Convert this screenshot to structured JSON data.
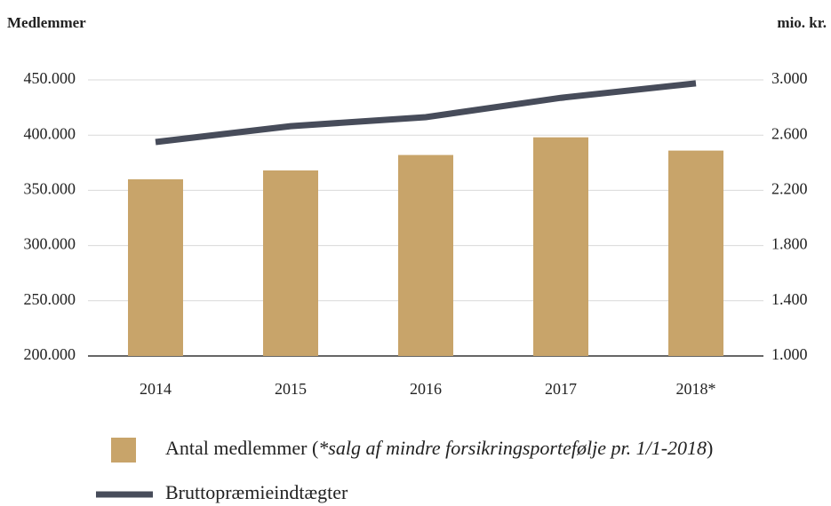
{
  "chart_data": {
    "type": "bar_line",
    "y_label": "Medlemmer",
    "y2_label": "mio. kr.",
    "categories": [
      "2014",
      "2015",
      "2016",
      "2017",
      "2018*"
    ],
    "series": [
      {
        "name": "Antal medlemmer (*salg af mindre forsikringsportefølje pr. 1/1-2018)",
        "type": "bar",
        "color": "#c8a46a",
        "values": [
          360000,
          368000,
          382000,
          398000,
          386000
        ]
      },
      {
        "name": "Bruttopræmieindtægter",
        "type": "line",
        "axis": "y2",
        "color": "#474c5a",
        "values": [
          2550,
          2665,
          2730,
          2870,
          2975
        ]
      }
    ],
    "ylim": [
      200000,
      450000
    ],
    "yticks": [
      {
        "value": 200000,
        "label": "200.000"
      },
      {
        "value": 250000,
        "label": "250.000"
      },
      {
        "value": 300000,
        "label": "300.000"
      },
      {
        "value": 350000,
        "label": "350.000"
      },
      {
        "value": 400000,
        "label": "400.000"
      },
      {
        "value": 450000,
        "label": "450.000"
      }
    ],
    "y2lim": [
      1000,
      3000
    ],
    "y2ticks": [
      {
        "value": 1000,
        "label": "1.000"
      },
      {
        "value": 1400,
        "label": "1.400"
      },
      {
        "value": 1800,
        "label": "1.800"
      },
      {
        "value": 2200,
        "label": "2.200"
      },
      {
        "value": 2600,
        "label": "2.600"
      },
      {
        "value": 3000,
        "label": "3.000"
      }
    ],
    "grid": true
  }
}
